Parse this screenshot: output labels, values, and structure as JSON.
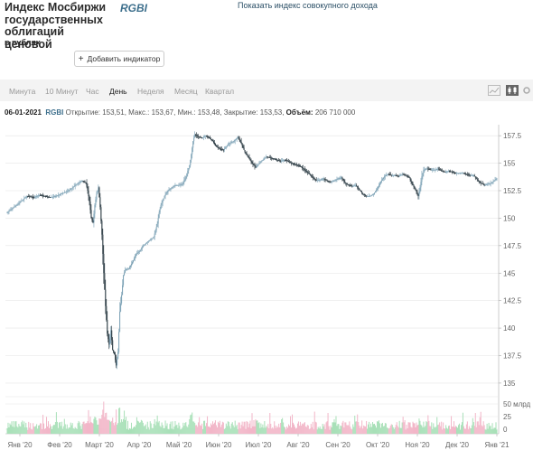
{
  "header": {
    "title_lines": [
      "Индекс Мосбиржи",
      "государственных",
      "облигаций ценовой"
    ],
    "unit": "в рублях",
    "ticker": "RGBI",
    "total_return_link": "Показать индекс совокупного дохода",
    "add_indicator": "Добавить индикатор"
  },
  "toolbar": {
    "timeframes": [
      "Минута",
      "10 Минут",
      "Час",
      "День",
      "Неделя",
      "Месяц",
      "Квартал"
    ],
    "active_timeframe": "День",
    "icons": [
      "line-chart-icon",
      "candle-chart-icon",
      "settings-icon"
    ]
  },
  "info": {
    "date": "06-01-2021",
    "ticker": "RGBI",
    "open_label": "Открытие:",
    "open": "153,51",
    "high_label": "Макс.:",
    "high": "153,67",
    "low_label": "Мин.:",
    "low": "153,48",
    "close_label": "Закрытие:",
    "close": "153,53",
    "volume_label": "Объём:",
    "volume": "206 710 000"
  },
  "chart_data": {
    "type": "candlestick",
    "ylim": [
      134.5,
      158.5
    ],
    "price_ticks": [
      "157.5",
      "155",
      "152.5",
      "150",
      "147.5",
      "145",
      "142.5",
      "140",
      "137.5",
      "135"
    ],
    "volume_ticks": [
      "50 млрд",
      "25",
      "0"
    ],
    "x_labels": [
      "Янв '20",
      "Фев '20",
      "Март '20",
      "Апр '20",
      "Май '20",
      "Июн '20",
      "Июл '20",
      "Авг '20",
      "Сен '20",
      "Окт '20",
      "Ноя '20",
      "Дек '20",
      "Янв '21"
    ],
    "colors": {
      "up": "#7aa0b4",
      "down": "#1a2b34",
      "vol_up": "#a8e0b8",
      "vol_down": "#f2b6c8",
      "grid": "#e6e6e6",
      "axis_text": "#666"
    },
    "anchors": [
      [
        0,
        150.5
      ],
      [
        6,
        150.9
      ],
      [
        12,
        151.3
      ],
      [
        18,
        151.7
      ],
      [
        22,
        152.0
      ],
      [
        30,
        151.9
      ],
      [
        36,
        152.1
      ],
      [
        42,
        152.0
      ],
      [
        48,
        151.9
      ],
      [
        54,
        152.0
      ],
      [
        60,
        152.2
      ],
      [
        66,
        152.4
      ],
      [
        72,
        152.7
      ],
      [
        78,
        153.1
      ],
      [
        84,
        153.4
      ],
      [
        88,
        153.2
      ],
      [
        90,
        152.5
      ],
      [
        92,
        151.5
      ],
      [
        94,
        150.0
      ],
      [
        96,
        149.6
      ],
      [
        98,
        151.2
      ],
      [
        100,
        152.2
      ],
      [
        102,
        152.8
      ],
      [
        104,
        151.0
      ],
      [
        106,
        148.5
      ],
      [
        108,
        145.0
      ],
      [
        110,
        142.0
      ],
      [
        112,
        139.5
      ],
      [
        114,
        138.5
      ],
      [
        116,
        139.8
      ],
      [
        118,
        138.0
      ],
      [
        120,
        137.6
      ],
      [
        122,
        136.6
      ],
      [
        124,
        137.8
      ],
      [
        126,
        141.5
      ],
      [
        128,
        143.0
      ],
      [
        130,
        144.8
      ],
      [
        132,
        145.3
      ],
      [
        136,
        145.4
      ],
      [
        140,
        146.0
      ],
      [
        144,
        146.7
      ],
      [
        148,
        147.0
      ],
      [
        152,
        147.5
      ],
      [
        156,
        147.8
      ],
      [
        160,
        148.0
      ],
      [
        164,
        148.3
      ],
      [
        168,
        149.5
      ],
      [
        170,
        150.5
      ],
      [
        172,
        151.2
      ],
      [
        176,
        152.0
      ],
      [
        180,
        152.5
      ],
      [
        184,
        152.8
      ],
      [
        188,
        153.0
      ],
      [
        192,
        153.0
      ],
      [
        196,
        153.1
      ],
      [
        200,
        153.8
      ],
      [
        204,
        154.8
      ],
      [
        206,
        155.8
      ],
      [
        208,
        157.0
      ],
      [
        210,
        157.6
      ],
      [
        214,
        157.4
      ],
      [
        218,
        157.3
      ],
      [
        222,
        157.5
      ],
      [
        226,
        157.3
      ],
      [
        230,
        157.0
      ],
      [
        234,
        156.5
      ],
      [
        238,
        156.3
      ],
      [
        242,
        156.2
      ],
      [
        246,
        156.6
      ],
      [
        250,
        156.9
      ],
      [
        254,
        157.0
      ],
      [
        258,
        157.4
      ],
      [
        262,
        156.8
      ],
      [
        266,
        156.0
      ],
      [
        270,
        155.5
      ],
      [
        274,
        155.0
      ],
      [
        278,
        154.6
      ],
      [
        282,
        155.0
      ],
      [
        286,
        155.3
      ],
      [
        290,
        155.6
      ],
      [
        294,
        155.5
      ],
      [
        298,
        155.4
      ],
      [
        302,
        155.3
      ],
      [
        306,
        155.2
      ],
      [
        310,
        155.3
      ],
      [
        314,
        155.2
      ],
      [
        318,
        155.0
      ],
      [
        322,
        154.9
      ],
      [
        326,
        154.8
      ],
      [
        330,
        154.6
      ],
      [
        334,
        154.3
      ],
      [
        338,
        154.0
      ],
      [
        342,
        153.7
      ],
      [
        346,
        153.4
      ],
      [
        350,
        153.5
      ],
      [
        354,
        153.6
      ],
      [
        358,
        153.4
      ],
      [
        362,
        153.3
      ],
      [
        366,
        153.4
      ],
      [
        370,
        153.6
      ],
      [
        374,
        153.7
      ],
      [
        378,
        153.2
      ],
      [
        382,
        153.0
      ],
      [
        386,
        152.9
      ],
      [
        390,
        153.0
      ],
      [
        394,
        152.6
      ],
      [
        398,
        152.2
      ],
      [
        402,
        152.0
      ],
      [
        406,
        152.0
      ],
      [
        410,
        152.2
      ],
      [
        414,
        152.7
      ],
      [
        418,
        153.3
      ],
      [
        422,
        153.8
      ],
      [
        426,
        154.0
      ],
      [
        430,
        153.9
      ],
      [
        434,
        153.9
      ],
      [
        438,
        153.8
      ],
      [
        442,
        154.0
      ],
      [
        446,
        153.9
      ],
      [
        450,
        153.7
      ],
      [
        454,
        153.0
      ],
      [
        458,
        152.4
      ],
      [
        460,
        152.0
      ],
      [
        462,
        152.8
      ],
      [
        464,
        153.8
      ],
      [
        466,
        154.4
      ],
      [
        470,
        154.5
      ],
      [
        474,
        154.4
      ],
      [
        478,
        154.4
      ],
      [
        482,
        154.5
      ],
      [
        486,
        154.3
      ],
      [
        490,
        154.2
      ],
      [
        494,
        154.3
      ],
      [
        498,
        154.2
      ],
      [
        502,
        154.1
      ],
      [
        506,
        154.1
      ],
      [
        510,
        154.1
      ],
      [
        514,
        154.0
      ],
      [
        518,
        153.9
      ],
      [
        522,
        153.9
      ],
      [
        526,
        153.5
      ],
      [
        530,
        153.2
      ],
      [
        534,
        153.0
      ],
      [
        538,
        153.1
      ],
      [
        542,
        153.2
      ],
      [
        546,
        153.5
      ],
      [
        548,
        153.6
      ]
    ]
  }
}
